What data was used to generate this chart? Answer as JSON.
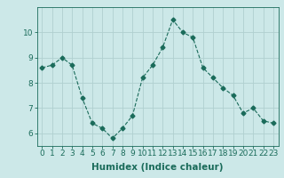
{
  "title": "",
  "xlabel": "Humidex (Indice chaleur)",
  "ylabel": "",
  "x": [
    0,
    1,
    2,
    3,
    4,
    5,
    6,
    7,
    8,
    9,
    10,
    11,
    12,
    13,
    14,
    15,
    16,
    17,
    18,
    19,
    20,
    21,
    22,
    23
  ],
  "y": [
    8.6,
    8.7,
    9.0,
    8.7,
    7.4,
    6.4,
    6.2,
    5.8,
    6.2,
    6.7,
    8.2,
    8.7,
    9.4,
    10.5,
    10.0,
    9.8,
    8.6,
    8.2,
    7.8,
    7.5,
    6.8,
    7.0,
    6.5,
    6.4
  ],
  "line_color": "#1a6b5a",
  "marker": "D",
  "marker_size": 2.5,
  "bg_color": "#cce8e8",
  "grid_color": "#b0d0d0",
  "ylim": [
    5.5,
    11.0
  ],
  "yticks": [
    6,
    7,
    8,
    9,
    10
  ],
  "xlim": [
    -0.5,
    23.5
  ],
  "tick_label_fontsize": 6.5,
  "xlabel_fontsize": 7.5
}
